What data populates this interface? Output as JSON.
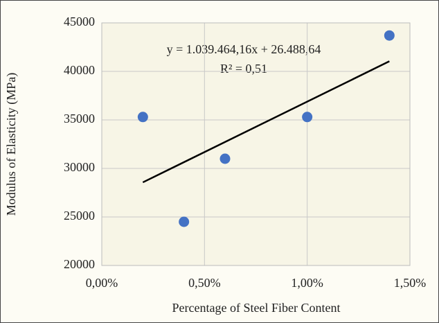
{
  "chart_data": {
    "type": "scatter",
    "x_label": "Percentage of Steel Fiber Content",
    "y_label": "Modulus of Elasticity (MPa)",
    "series": [
      {
        "color": "#4472c4",
        "x": [
          0.2,
          0.4,
          0.6,
          1.0,
          1.4
        ],
        "values": [
          35300,
          24500,
          31000,
          35300,
          43700
        ]
      }
    ],
    "trendline": {
      "color": "#000000",
      "x": [
        0.2,
        1.4
      ],
      "values": [
        28567,
        41041
      ],
      "equation": "y = 1.039.464,16x + 26.488,64",
      "r_squared": "R² = 0,51"
    },
    "xlim": [
      0,
      1.5
    ],
    "xticks": [
      {
        "value": 0,
        "label": "0,00%"
      },
      {
        "value": 0.5,
        "label": "0,50%"
      },
      {
        "value": 1.0,
        "label": "1,00%"
      },
      {
        "value": 1.5,
        "label": "1,50%"
      }
    ],
    "ylim": [
      20000,
      45000
    ],
    "yticks": [
      20000,
      25000,
      30000,
      35000,
      40000,
      45000
    ],
    "grid": true
  }
}
